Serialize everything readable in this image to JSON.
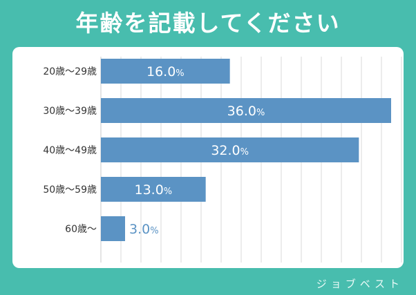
{
  "title": "年齢を記載してください",
  "brand": "ジョブベスト",
  "colors": {
    "background": "#48bdae",
    "panel": "#ffffff",
    "bar": "#5b93c4",
    "grid": "#d9d9d9",
    "label_text": "#333333",
    "value_text_inside": "#ffffff",
    "value_text_outside": "#5b93c4"
  },
  "chart_data": {
    "type": "bar",
    "orientation": "horizontal",
    "title": "年齢を記載してください",
    "categories": [
      "20歳〜29歳",
      "30歳〜39歳",
      "40歳〜49歳",
      "50歳〜59歳",
      "60歳〜"
    ],
    "values": [
      16.0,
      36.0,
      32.0,
      13.0,
      3.0
    ],
    "value_labels": [
      "16.0",
      "36.0",
      "32.0",
      "13.0",
      "3.0"
    ],
    "unit": "%",
    "xlim": [
      0,
      36
    ],
    "grid": true,
    "legend": "none"
  }
}
